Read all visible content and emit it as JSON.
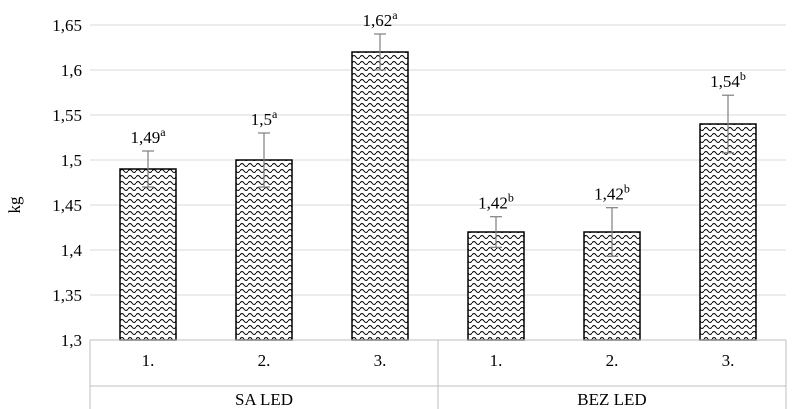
{
  "chart_data": {
    "type": "bar",
    "title": "",
    "xlabel": "",
    "ylabel": "kg",
    "ylim": [
      1.3,
      1.65
    ],
    "y_ticks": [
      "1,3",
      "1,35",
      "1,4",
      "1,45",
      "1,5",
      "1,55",
      "1,6",
      "1,65"
    ],
    "grid": true,
    "groups": [
      {
        "name": "SA LED",
        "bars": [
          {
            "category": "1.",
            "value": 1.49,
            "error": 0.02,
            "label": "1,49",
            "sup": "a"
          },
          {
            "category": "2.",
            "value": 1.5,
            "error": 0.03,
            "label": "1,5",
            "sup": "a"
          },
          {
            "category": "3.",
            "value": 1.62,
            "error": 0.02,
            "label": "1,62",
            "sup": "a"
          }
        ]
      },
      {
        "name": "BEZ LED",
        "bars": [
          {
            "category": "1.",
            "value": 1.42,
            "error": 0.017,
            "label": "1,42",
            "sup": "b"
          },
          {
            "category": "2.",
            "value": 1.42,
            "error": 0.027,
            "label": "1,42",
            "sup": "b"
          },
          {
            "category": "3.",
            "value": 1.54,
            "error": 0.032,
            "label": "1,54",
            "sup": "b"
          }
        ]
      }
    ]
  }
}
